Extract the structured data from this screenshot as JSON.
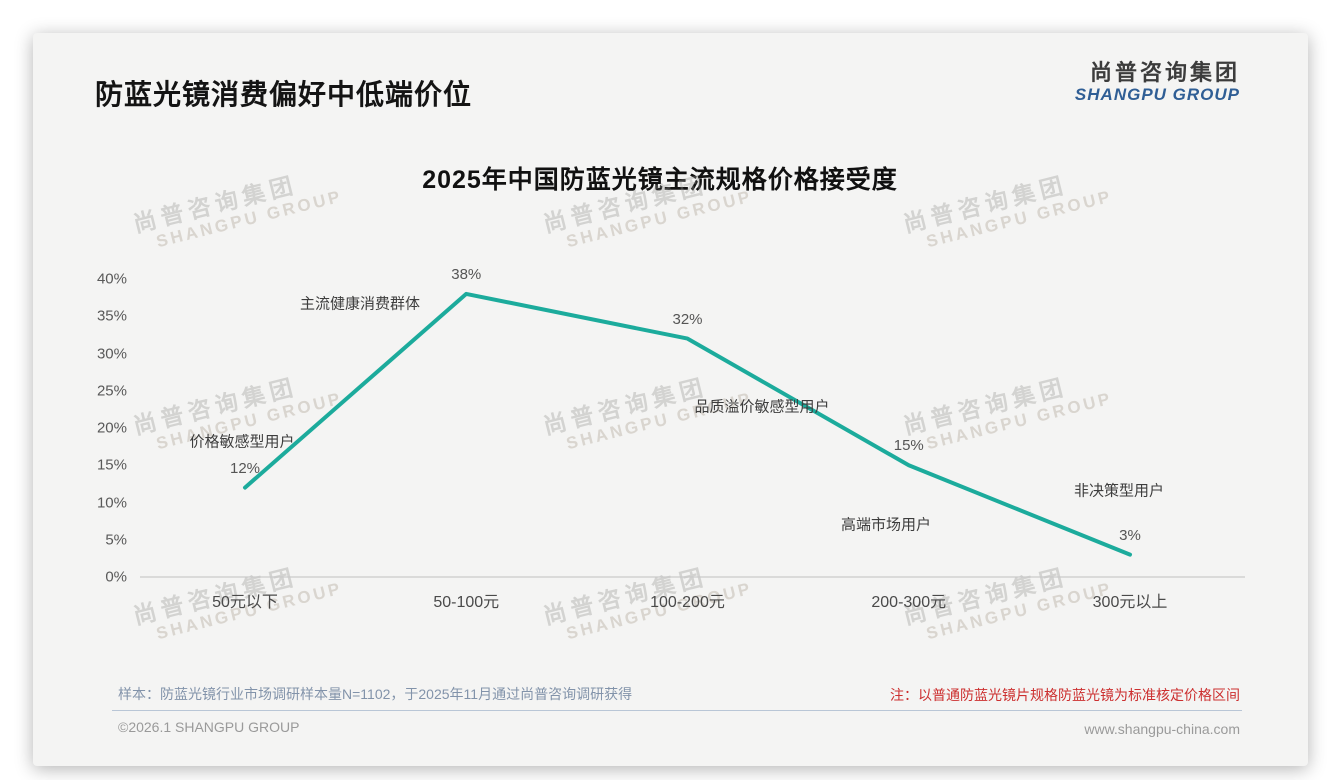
{
  "page": {
    "title": "防蓝光镜消费偏好中低端价位",
    "logo": {
      "cn": "尚普咨询集团",
      "en": "SHANGPU GROUP"
    },
    "watermark": {
      "cn": "尚普咨询集团",
      "en": "SHANGPU GROUP"
    },
    "sample_note": "样本：防蓝光镜行业市场调研样本量N=1102，于2025年11月通过尚普咨询调研获得",
    "price_basis_note": "注：以普通防蓝光镜片规格防蓝光镜为标准核定价格区间",
    "footer": {
      "copyright": "©2026.1 SHANGPU GROUP",
      "website": "www.shangpu-china.com"
    }
  },
  "chart_data": {
    "type": "line",
    "title": "2025年中国防蓝光镜主流规格价格接受度",
    "categories": [
      "50元以下",
      "50-100元",
      "100-200元",
      "200-300元",
      "300元以上"
    ],
    "values": [
      12,
      38,
      32,
      15,
      3
    ],
    "value_labels": [
      "12%",
      "38%",
      "32%",
      "15%",
      "3%"
    ],
    "annotations": [
      "价格敏感型用户",
      "主流健康消费群体",
      "品质溢价敏感型用户",
      "高端市场用户",
      "非决策型用户"
    ],
    "xlabel": "",
    "ylabel": "",
    "ylim": [
      0,
      40
    ],
    "ytick_labels": [
      "40%",
      "35%",
      "30%",
      "25%",
      "20%",
      "15%",
      "10%",
      "5%",
      "0%"
    ],
    "grid": false,
    "legend": false,
    "line_color": "#1cab9c",
    "axis_color": "#c9c9c9"
  }
}
